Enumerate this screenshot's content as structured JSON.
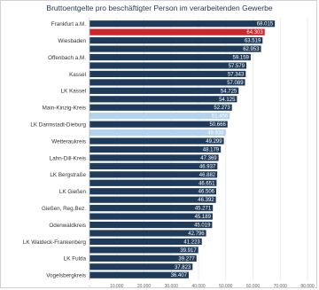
{
  "chart_data": {
    "type": "bar",
    "orientation": "horizontal",
    "title": "Bruttoentgelte pro beschäftigter Person im verarbeitenden Gewerbe",
    "xlabel": "",
    "ylabel": "",
    "xlim": [
      0,
      80000
    ],
    "xticks": [
      "-",
      "10.000",
      "20.000",
      "30.000",
      "40.000",
      "50.000",
      "60.000",
      "70.000",
      "80.000"
    ],
    "grid": true,
    "colors": {
      "default": "#1f3b5c",
      "highlight_red": "#d0262b",
      "highlight_light": "#b3d4ee",
      "label_text": "#ffffff"
    },
    "categories": [
      "Frankfurt a.M.",
      "",
      "Wiesbaden",
      "",
      "Offenbach a.M.",
      "",
      "Kassel",
      "",
      "LK Kassel",
      "",
      "Main-Kinzig-Kreis",
      "",
      "LK Darmstadt-Dieburg",
      "",
      "Wetteraukreis",
      "",
      "Lahn-Dill-Kreis",
      "",
      "LK Bergstraße",
      "",
      "LK Gießen",
      "",
      "Gießen, Reg.Bez.",
      "",
      "Odenwaldkreis",
      "",
      "LK Waldeck-Frankenberg",
      "",
      "LK Fulda",
      "",
      "Vogelsbergkreis"
    ],
    "values": [
      68015,
      64303,
      63519,
      62953,
      59159,
      57579,
      57343,
      57089,
      54725,
      54125,
      52273,
      51456,
      50666,
      49938,
      49299,
      48179,
      47369,
      46937,
      46882,
      46651,
      46506,
      46392,
      45271,
      45189,
      45019,
      42796,
      41223,
      39917,
      39277,
      37823,
      36407
    ],
    "value_labels": [
      "68.015",
      "64.303",
      "63.519",
      "62.953",
      "59.159",
      "57.579",
      "57.343",
      "57.089",
      "54.725",
      "54.125",
      "52.273",
      "51.456",
      "50.666",
      "49.938",
      "49.299",
      "48.179",
      "47.369",
      "46.937",
      "46.882",
      "46.651",
      "46.506",
      "46.392",
      "45.271",
      "45.189",
      "45.019",
      "42.796",
      "41.223",
      "39.917",
      "39.277",
      "37.823",
      "36.407"
    ],
    "highlight": [
      "default",
      "red",
      "default",
      "default",
      "default",
      "default",
      "default",
      "default",
      "default",
      "default",
      "default",
      "light",
      "default",
      "light",
      "default",
      "default",
      "default",
      "default",
      "default",
      "default",
      "default",
      "default",
      "default",
      "default",
      "default",
      "default",
      "default",
      "default",
      "default",
      "default",
      "default"
    ]
  }
}
